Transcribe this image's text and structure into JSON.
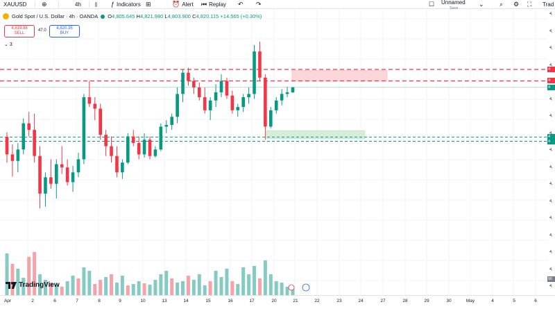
{
  "toolbar": {
    "symbol": "XAUUSD",
    "interval": "4h",
    "indicators_label": "Indicators",
    "alert_label": "Alert",
    "replay_label": "Replay",
    "layout_name": "Unnamed",
    "layout_status": "Save",
    "trade_label": "Trad"
  },
  "legend": {
    "title": "Gold Spot / U.S. Dollar · 4h · OANDA",
    "open_key": "O",
    "open": "4,805.645",
    "high_key": "H",
    "high": "4,821.980",
    "low_key": "L",
    "low": "4,803.900",
    "close_key": "C",
    "close": "4,820.115",
    "change": "+14.565 (+0.30%)"
  },
  "trade": {
    "sell_price": "4,819.88",
    "sell_label": "SELL",
    "spread": "47.0",
    "buy_price": "4,820.35",
    "buy_label": "BUY",
    "indicator_count": "3"
  },
  "branding": {
    "logo_text": "TradingView"
  },
  "time_axis": {
    "labels": [
      "Apr",
      "2",
      "6",
      "7",
      "8",
      "9",
      "10",
      "13",
      "14",
      "15",
      "16",
      "17",
      "20",
      "21",
      "22",
      "23",
      "24",
      "27",
      "28",
      "29",
      "30",
      "May",
      "4",
      "5",
      "6"
    ]
  },
  "price_axis": {
    "labels": [
      "4,",
      "4,",
      "4,",
      "4,",
      "4,",
      "4,",
      "4,",
      "4,",
      "4,",
      "4,",
      "4,",
      "4,",
      "4,",
      "4,",
      "4,",
      "4,",
      "4,"
    ],
    "tags": [
      "4",
      "4",
      "4",
      "4",
      "4",
      "80"
    ]
  },
  "colors": {
    "up": "#089981",
    "down": "#f23645",
    "vol_up": "#86cbc3",
    "vol_down": "#f5a3a9",
    "resistance": "#f23645",
    "support": "#089981",
    "supply_zone": "#fcd7da",
    "demand_zone": "#d6eed9"
  },
  "chart_data": {
    "type": "candlestick",
    "candles": [
      [
        4669,
        4683,
        4590,
        4615
      ],
      [
        4615,
        4646,
        4547,
        4595
      ],
      [
        4595,
        4650,
        4560,
        4630
      ],
      [
        4630,
        4725,
        4615,
        4710
      ],
      [
        4710,
        4745,
        4670,
        4690
      ],
      [
        4690,
        4740,
        4590,
        4610
      ],
      [
        4610,
        4640,
        4450,
        4495
      ],
      [
        4495,
        4560,
        4455,
        4545
      ],
      [
        4545,
        4600,
        4510,
        4525
      ],
      [
        4525,
        4600,
        4480,
        4585
      ],
      [
        4585,
        4640,
        4555,
        4575
      ],
      [
        4575,
        4600,
        4520,
        4530
      ],
      [
        4530,
        4580,
        4500,
        4560
      ],
      [
        4560,
        4620,
        4545,
        4600
      ],
      [
        4600,
        4800,
        4585,
        4790
      ],
      [
        4790,
        4840,
        4760,
        4770
      ],
      [
        4770,
        4790,
        4720,
        4755
      ],
      [
        4755,
        4770,
        4660,
        4675
      ],
      [
        4675,
        4690,
        4610,
        4640
      ],
      [
        4640,
        4670,
        4590,
        4610
      ],
      [
        4610,
        4640,
        4545,
        4560
      ],
      [
        4560,
        4600,
        4540,
        4590
      ],
      [
        4590,
        4680,
        4585,
        4670
      ],
      [
        4670,
        4690,
        4640,
        4650
      ],
      [
        4650,
        4670,
        4600,
        4615
      ],
      [
        4615,
        4680,
        4605,
        4660
      ],
      [
        4660,
        4670,
        4600,
        4610
      ],
      [
        4610,
        4640,
        4605,
        4630
      ],
      [
        4630,
        4710,
        4625,
        4700
      ],
      [
        4700,
        4720,
        4680,
        4705
      ],
      [
        4705,
        4740,
        4690,
        4730
      ],
      [
        4730,
        4820,
        4710,
        4800
      ],
      [
        4800,
        4875,
        4775,
        4865
      ],
      [
        4865,
        4880,
        4825,
        4840
      ],
      [
        4840,
        4850,
        4800,
        4820
      ],
      [
        4820,
        4835,
        4780,
        4790
      ],
      [
        4790,
        4820,
        4740,
        4750
      ],
      [
        4750,
        4790,
        4720,
        4780
      ],
      [
        4780,
        4830,
        4760,
        4805
      ],
      [
        4805,
        4860,
        4790,
        4840
      ],
      [
        4840,
        4850,
        4785,
        4795
      ],
      [
        4795,
        4810,
        4740,
        4750
      ],
      [
        4750,
        4770,
        4730,
        4760
      ],
      [
        4760,
        4800,
        4745,
        4790
      ],
      [
        4790,
        4820,
        4770,
        4800
      ],
      [
        4800,
        4950,
        4785,
        4930
      ],
      [
        4930,
        4960,
        4840,
        4850
      ],
      [
        4850,
        4860,
        4660,
        4700
      ],
      [
        4700,
        4760,
        4695,
        4750
      ],
      [
        4750,
        4790,
        4740,
        4780
      ],
      [
        4780,
        4815,
        4765,
        4800
      ],
      [
        4800,
        4822,
        4790,
        4805
      ],
      [
        4805,
        4822,
        4803,
        4820
      ]
    ],
    "volumes": [
      [
        60,
        1
      ],
      [
        45,
        0
      ],
      [
        38,
        1
      ],
      [
        25,
        1
      ],
      [
        55,
        0
      ],
      [
        62,
        0
      ],
      [
        30,
        1
      ],
      [
        22,
        1
      ],
      [
        18,
        0
      ],
      [
        15,
        1
      ],
      [
        12,
        0
      ],
      [
        20,
        1
      ],
      [
        28,
        1
      ],
      [
        24,
        0
      ],
      [
        40,
        1
      ],
      [
        35,
        1
      ],
      [
        16,
        0
      ],
      [
        22,
        0
      ],
      [
        26,
        1
      ],
      [
        30,
        0
      ],
      [
        18,
        1
      ],
      [
        28,
        1
      ],
      [
        14,
        0
      ],
      [
        16,
        1
      ],
      [
        20,
        1
      ],
      [
        17,
        0
      ],
      [
        15,
        1
      ],
      [
        22,
        1
      ],
      [
        30,
        1
      ],
      [
        35,
        1
      ],
      [
        24,
        0
      ],
      [
        18,
        1
      ],
      [
        20,
        1
      ],
      [
        28,
        0
      ],
      [
        22,
        1
      ],
      [
        30,
        1
      ],
      [
        14,
        1
      ],
      [
        20,
        0
      ],
      [
        35,
        1
      ],
      [
        26,
        1
      ],
      [
        38,
        1
      ],
      [
        20,
        0
      ],
      [
        16,
        1
      ],
      [
        40,
        1
      ],
      [
        30,
        1
      ],
      [
        42,
        1
      ],
      [
        24,
        0
      ],
      [
        50,
        1
      ],
      [
        30,
        1
      ],
      [
        20,
        1
      ],
      [
        18,
        1
      ],
      [
        12,
        1
      ],
      [
        10,
        1
      ]
    ],
    "levels": {
      "resistance": [
        4875,
        4840
      ],
      "support": [
        4668,
        4655
      ]
    },
    "zones": {
      "supply": {
        "price_top": 4872,
        "price_bottom": 4840
      },
      "demand": {
        "price_top": 4688,
        "price_bottom": 4663
      }
    },
    "current_price": 4820.115,
    "ylim": [
      4450,
      4960
    ]
  }
}
